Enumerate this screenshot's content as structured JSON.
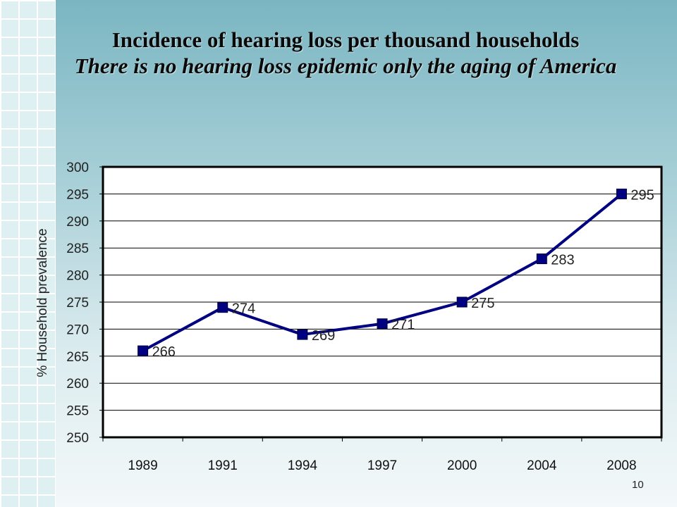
{
  "slide": {
    "title_line1": "Incidence of hearing loss per thousand households",
    "title_line2": "There is no hearing loss epidemic only the aging of America",
    "page_number": "10"
  },
  "colors": {
    "series": "#000080",
    "plot_background": "#ffffff",
    "plot_border": "#000000",
    "gridline": "#000000"
  },
  "chart_data": {
    "type": "line",
    "title": "",
    "xlabel": "",
    "ylabel": "% Household prevalence",
    "categories": [
      "1989",
      "1991",
      "1994",
      "1997",
      "2000",
      "2004",
      "2008"
    ],
    "series": [
      {
        "values": [
          266,
          274,
          269,
          271,
          275,
          283,
          295
        ],
        "data_labels": [
          "266",
          "274",
          "269",
          "271",
          "275",
          "283",
          "295"
        ]
      }
    ],
    "ylim": [
      250,
      300
    ],
    "ytick_step": 5,
    "yticks": [
      "250",
      "255",
      "260",
      "265",
      "270",
      "275",
      "280",
      "285",
      "290",
      "295",
      "300"
    ],
    "grid": true,
    "marker": "square",
    "legend": "none"
  }
}
